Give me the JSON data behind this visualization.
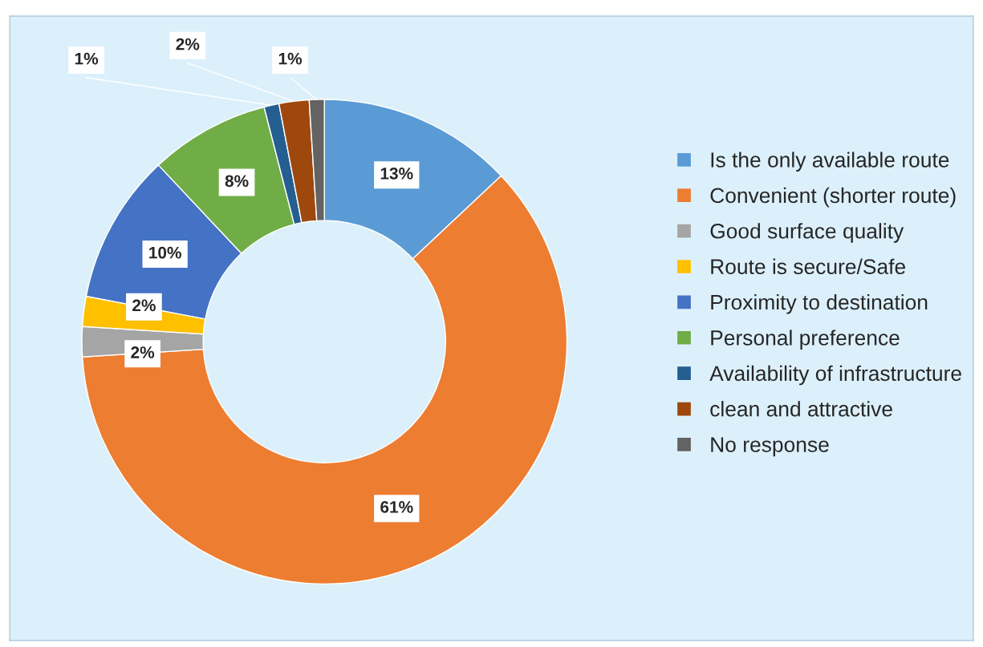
{
  "chart_data": {
    "type": "donut",
    "categories": [
      "Is the only available route",
      "Convenient (shorter route)",
      "Good surface quality",
      "Route is secure/Safe",
      "Proximity to destination",
      "Personal preference",
      "Availability of infrastructure",
      "clean and attractive",
      "No response"
    ],
    "values": [
      13,
      61,
      2,
      2,
      10,
      8,
      1,
      2,
      1
    ],
    "colors": [
      "#5b9bd5",
      "#ed7d31",
      "#a5a5a5",
      "#ffc000",
      "#4472c4",
      "#70ad47",
      "#255e91",
      "#9e480e",
      "#636363"
    ],
    "value_labels": [
      "13%",
      "61%",
      "2%",
      "2%",
      "10%",
      "8%",
      "1%",
      "2%",
      "1%"
    ],
    "legend": "right"
  }
}
